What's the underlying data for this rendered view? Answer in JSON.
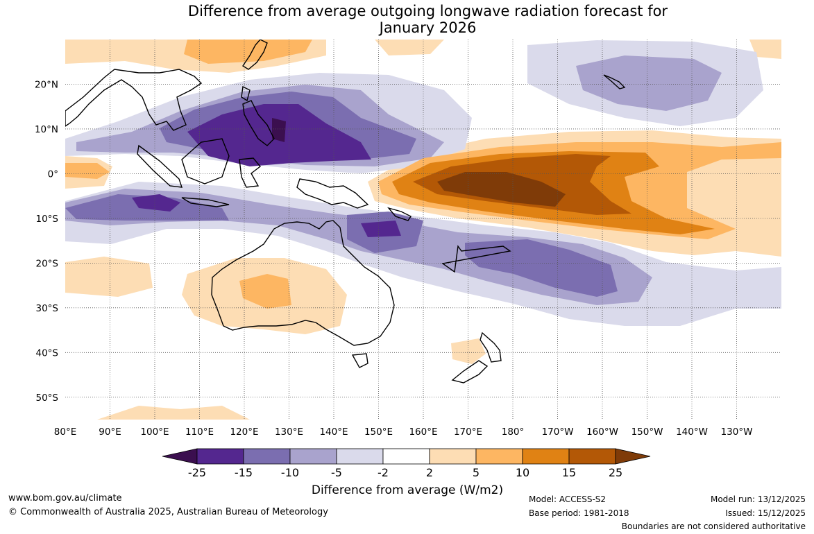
{
  "title": {
    "line1": "Difference from average outgoing longwave radiation forecast for",
    "line2": "January 2026"
  },
  "map": {
    "lat_ticks": [
      "20°N",
      "10°N",
      "0°",
      "10°S",
      "20°S",
      "30°S",
      "40°S",
      "50°S"
    ],
    "lat_values": [
      20,
      10,
      0,
      -10,
      -20,
      -30,
      -40,
      -50
    ],
    "lon_ticks": [
      "80°E",
      "90°E",
      "100°E",
      "110°E",
      "120°E",
      "130°E",
      "140°E",
      "150°E",
      "160°E",
      "170°E",
      "180°",
      "170°W",
      "160°W",
      "150°W",
      "140°W",
      "130°W"
    ],
    "lon_values": [
      80,
      90,
      100,
      110,
      120,
      130,
      140,
      150,
      160,
      170,
      180,
      190,
      200,
      210,
      220,
      230
    ],
    "lat_range": [
      -55,
      30
    ],
    "lon_range": [
      80,
      240
    ]
  },
  "legend": {
    "title": "Difference from average (W/m2)",
    "tick_labels": [
      "-25",
      "-15",
      "-10",
      "-5",
      "-2",
      "2",
      "5",
      "10",
      "15",
      "25"
    ],
    "colors": [
      "#3b0f4f",
      "#54278f",
      "#7b6eb0",
      "#a9a3cd",
      "#dadaeb",
      "#ffffff",
      "#fdddb4",
      "#fdb662",
      "#e08214",
      "#b35806",
      "#7f3b08"
    ]
  },
  "footer": {
    "website": "www.bom.gov.au/climate",
    "copyright": "© Commonwealth of Australia 2025, Australian Bureau of Meteorology",
    "model": "Model: ACCESS-S2",
    "base_period": "Base period: 1981-2018",
    "model_run": "Model run: 13/12/2025",
    "issued": "Issued: 15/12/2025",
    "disclaimer": "Boundaries are not considered authoritative"
  }
}
